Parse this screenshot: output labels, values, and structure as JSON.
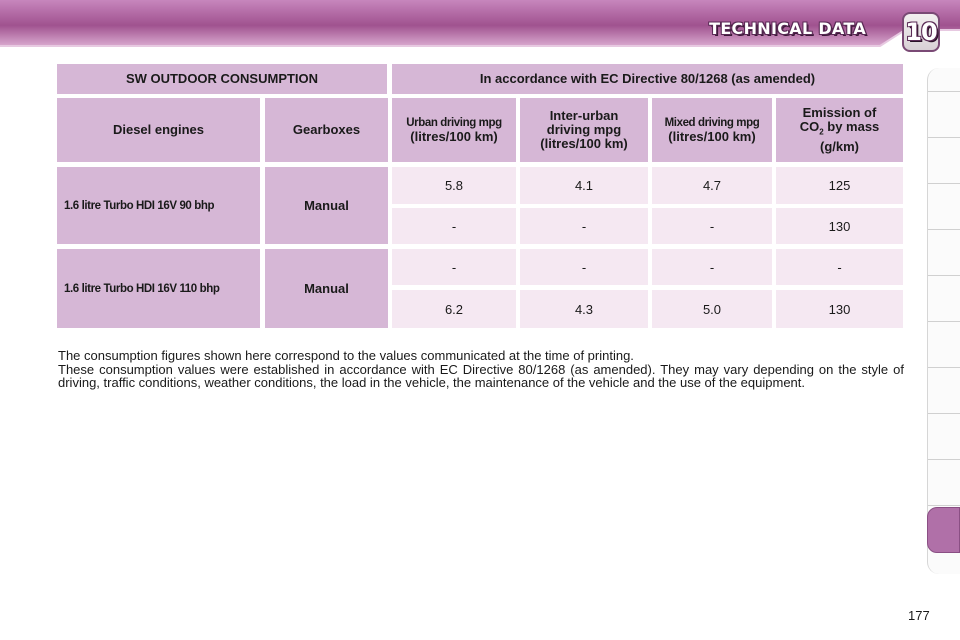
{
  "header": {
    "title": "TECHNICAL DATA",
    "chapter": "10",
    "colors": {
      "band": "#a0528f",
      "band_light": "#d9a9cf",
      "accent": "#b070a8"
    }
  },
  "table": {
    "title": "SW OUTDOOR CONSUMPTION",
    "directive": "In accordance with EC Directive 80/1268 (as amended)",
    "columns": {
      "engines": "Diesel engines",
      "gearboxes": "Gearboxes",
      "urban_l1": "Urban driving mpg",
      "urban_l2": "(litres/100 km)",
      "inter_l1": "Inter-urban",
      "inter_l2": "driving mpg",
      "inter_l3": "(litres/100 km)",
      "mixed_l1": "Mixed driving mpg",
      "mixed_l2": "(litres/100 km)",
      "co2_l1": "Emission of",
      "co2_l2a": "CO",
      "co2_sub": "2",
      "co2_l2b": " by mass",
      "co2_l3": "(g/km)"
    },
    "groups": [
      {
        "engine": "1.6 litre Turbo HDI 16V 90 bhp",
        "gearbox": "Manual",
        "rows": [
          {
            "urban": "5.8",
            "inter": "4.1",
            "mixed": "4.7",
            "co2": "125"
          },
          {
            "urban": "-",
            "inter": "-",
            "mixed": "-",
            "co2": "130"
          }
        ]
      },
      {
        "engine": "1.6 litre Turbo HDI 16V 110 bhp",
        "gearbox": "Manual",
        "rows": [
          {
            "urban": "-",
            "inter": "-",
            "mixed": "-",
            "co2": "-"
          },
          {
            "urban": "6.2",
            "inter": "4.3",
            "mixed": "5.0",
            "co2": "130"
          }
        ]
      }
    ]
  },
  "note": {
    "line1": "The consumption figures shown here correspond to the values communicated at the time of printing.",
    "line2": "These consumption values were established in accordance with EC Directive 80/1268 (as amended). They may vary depending on the style of driving, traffic conditions, weather conditions, the load in the vehicle, the maintenance of the vehicle and the use of the equipment."
  },
  "page_number": "177"
}
